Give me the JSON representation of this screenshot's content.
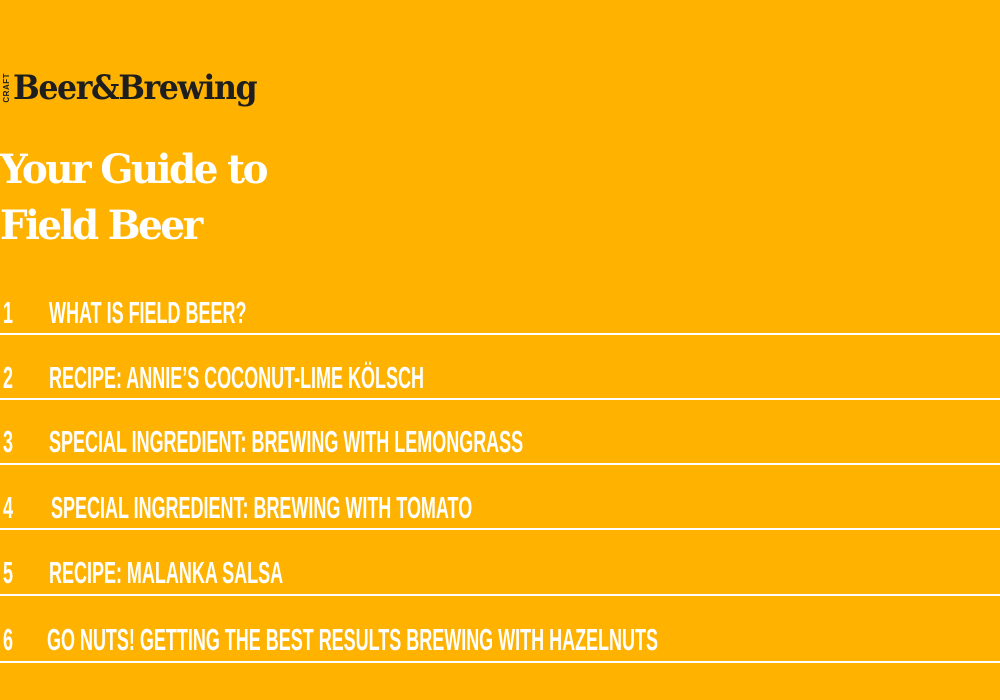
{
  "logo": {
    "small": "CRAFT",
    "brand": "Beer&Brewing"
  },
  "title": {
    "line1": "Your Guide to",
    "line2": "Field Beer"
  },
  "toc": [
    {
      "num": "1",
      "label": "WHAT IS FIELD BEER?"
    },
    {
      "num": "2",
      "label": "RECIPE: ANNIE’S COCONUT-LIME KÖLSCH"
    },
    {
      "num": "3",
      "label": "SPECIAL INGREDIENT: BREWING WITH LEMONGRASS"
    },
    {
      "num": "4",
      "label": "SPECIAL INGREDIENT: BREWING WITH TOMATO"
    },
    {
      "num": "5",
      "label": "RECIPE: MALANKA SALSA"
    },
    {
      "num": "6",
      "label": "GO NUTS! GETTING THE BEST RESULTS BREWING WITH HAZELNUTS"
    }
  ],
  "colors": {
    "background": "#FFB300",
    "text": "#FFFFFF",
    "logo": "#1E1E1E"
  }
}
